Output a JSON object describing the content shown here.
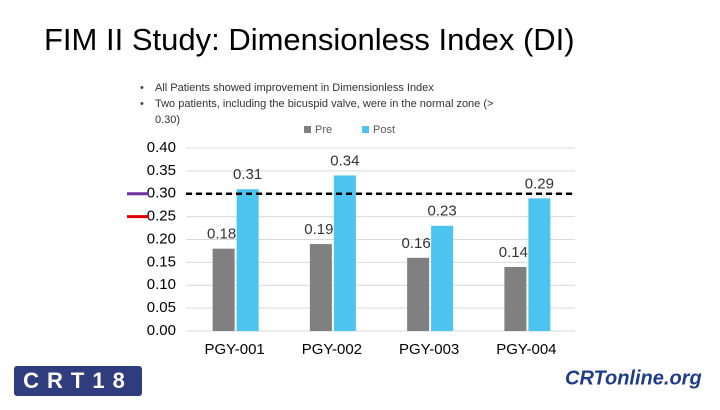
{
  "slide": {
    "title": "FIM II Study: Dimensionless Index (DI)",
    "bullets": [
      "All Patients showed improvement in Dimensionless Index",
      "Two patients, including the bicuspid valve, were in the normal zone (>",
      "0.30)"
    ]
  },
  "chart_data": {
    "type": "bar",
    "categories": [
      "PGY-001",
      "PGY-002",
      "PGY-003",
      "PGY-004"
    ],
    "series": [
      {
        "name": "Pre",
        "color": "#808080",
        "values": [
          0.18,
          0.19,
          0.16,
          0.14
        ]
      },
      {
        "name": "Post",
        "color": "#4dc3ef",
        "values": [
          0.31,
          0.34,
          0.23,
          0.29
        ]
      }
    ],
    "ylim": [
      0,
      0.4
    ],
    "yticks": [
      {
        "value": 0,
        "label": "0.00"
      },
      {
        "value": 0.05,
        "label": "0.05"
      },
      {
        "value": 0.1,
        "label": "0.10"
      },
      {
        "value": 0.15,
        "label": "0.15"
      },
      {
        "value": 0.2,
        "label": "0.20"
      },
      {
        "value": 0.25,
        "label": "0.25"
      },
      {
        "value": 0.3,
        "label": "0.30"
      },
      {
        "value": 0.35,
        "label": "0.35"
      },
      {
        "value": 0.4,
        "label": "0.40"
      }
    ],
    "grid": true,
    "legend": "top",
    "reference_line": {
      "value": 0.3,
      "color": "#000000"
    },
    "axis_markers": [
      {
        "value": 0.3,
        "color": "#7030a0"
      },
      {
        "value": 0.25,
        "color": "#e00000"
      }
    ]
  },
  "footer": {
    "left_logo": "CRT18",
    "right_logo": "CRTonline.org"
  }
}
